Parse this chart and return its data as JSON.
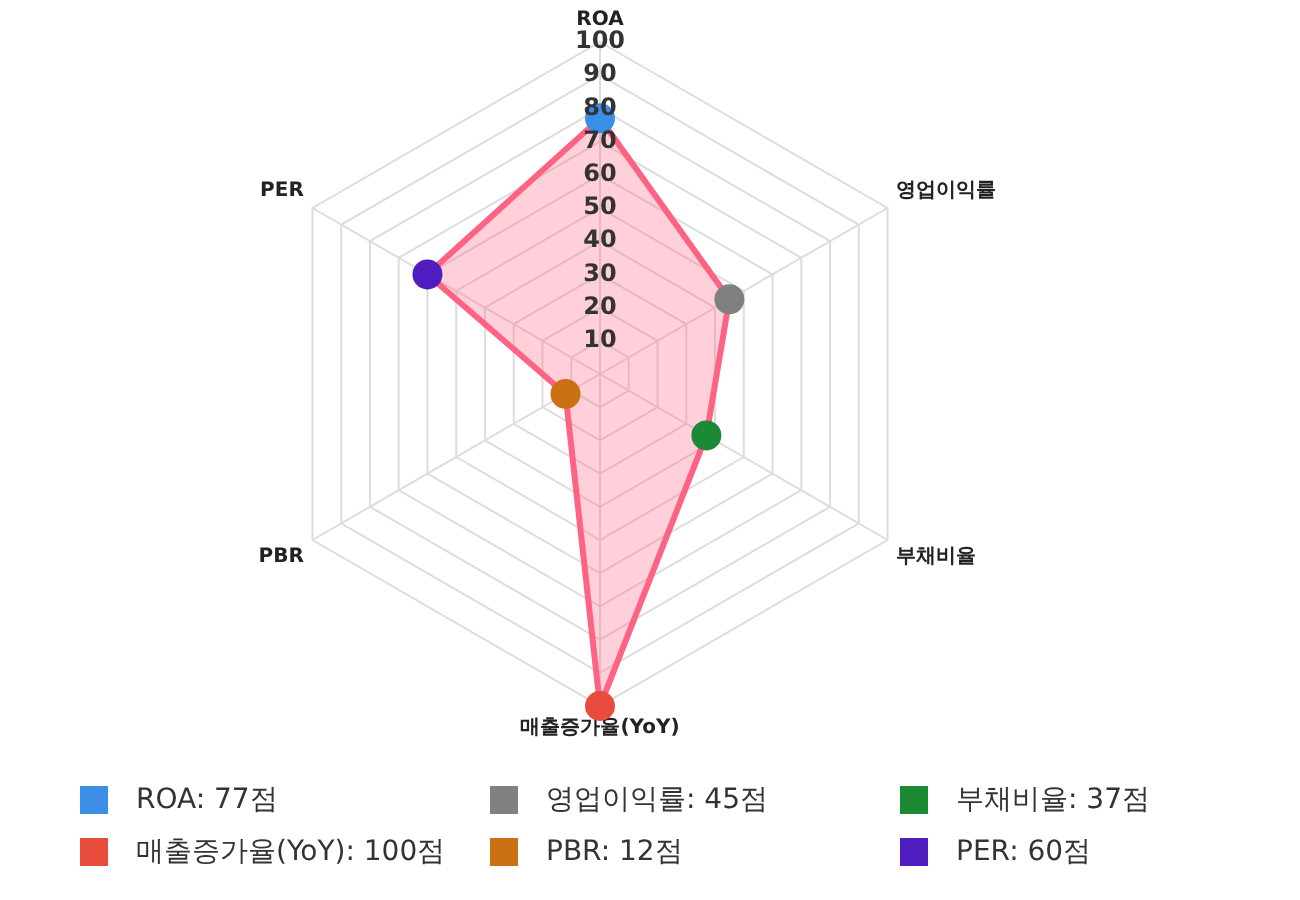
{
  "chart_data": {
    "type": "radar",
    "categories": [
      "ROA",
      "영업이익률",
      "부채비율",
      "매출증가율(YoY)",
      "PBR",
      "PER"
    ],
    "series": [
      {
        "color": "#ff6384",
        "values": [
          77,
          45,
          37,
          100,
          12,
          60
        ],
        "colors": [
          "#3a8ee6",
          "#808080",
          "#1a8a35",
          "#e84c3d",
          "#cc7014",
          "#4f1cc0"
        ]
      }
    ],
    "annotations": [
      "ROA: 77점",
      "영업이익률: 45점",
      "부채비율: 37점",
      "매출증가율(YoY): 100점",
      "PBR: 12점",
      "PER: 60점"
    ],
    "ylim": [
      0,
      100
    ],
    "yticks": [
      10,
      20,
      30,
      40,
      50,
      60,
      70,
      80,
      90,
      100
    ],
    "grid": true,
    "marker": "circle"
  }
}
